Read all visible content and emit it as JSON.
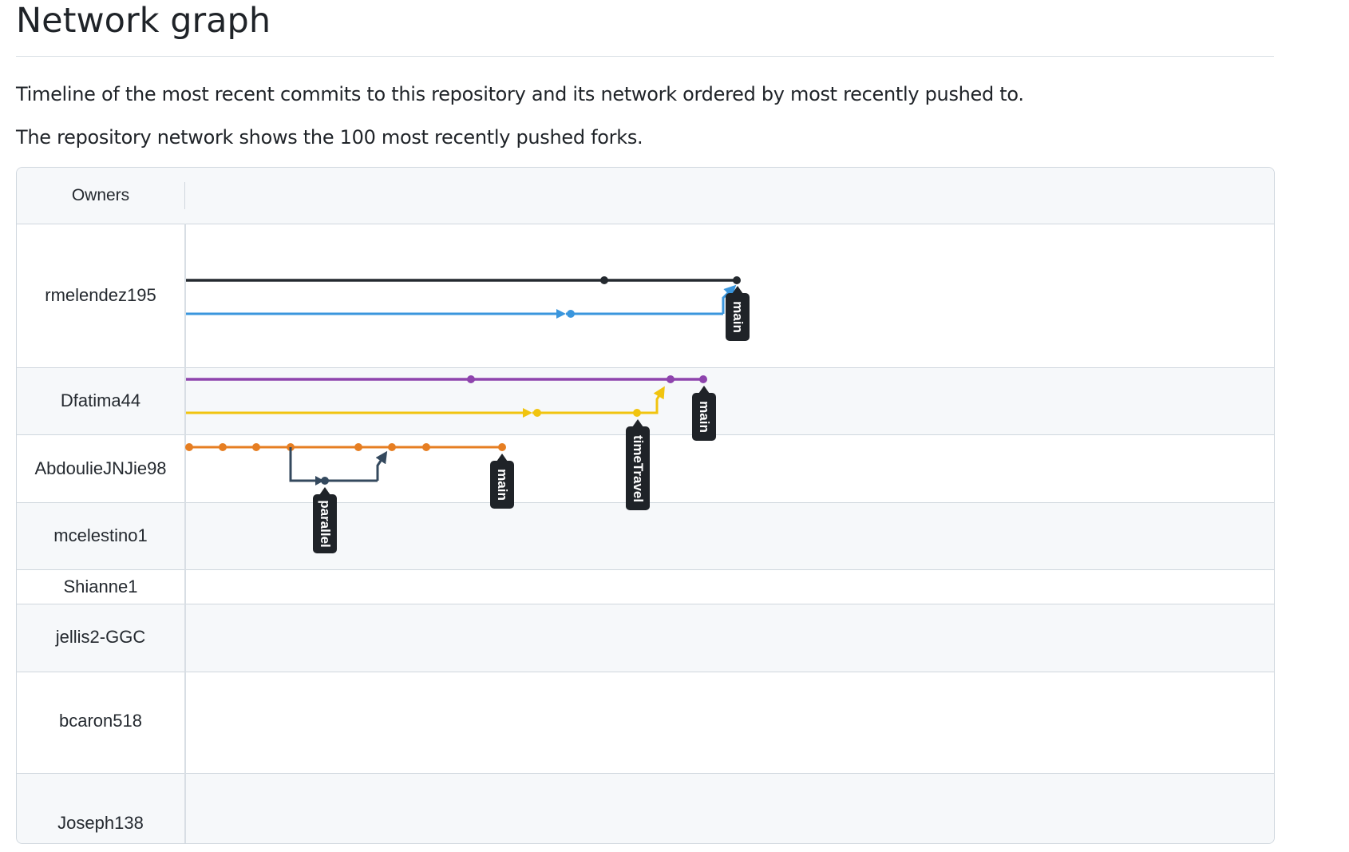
{
  "page": {
    "title": "Network graph",
    "description_1": "Timeline of the most recent commits to this repository and its network ordered by most recently pushed to.",
    "description_2": "The repository network shows the 100 most recently pushed forks."
  },
  "network": {
    "owners_header": "Owners",
    "owners": [
      "rmelendez195",
      "Dfatima44",
      "AbdoulieJNJie98",
      "mcelestino1",
      "Shianne1",
      "jellis2-GGC",
      "bcaron518",
      "Joseph138"
    ],
    "branch_labels": [
      "main",
      "main",
      "timeTravel",
      "main",
      "parallel"
    ],
    "colors": {
      "black": "#24292f",
      "blue": "#3a96dd",
      "purple": "#8e44ad",
      "yellow": "#f1c40f",
      "orange": "#e67e22",
      "slate": "#34495e",
      "label_bg": "#1f2328"
    }
  }
}
